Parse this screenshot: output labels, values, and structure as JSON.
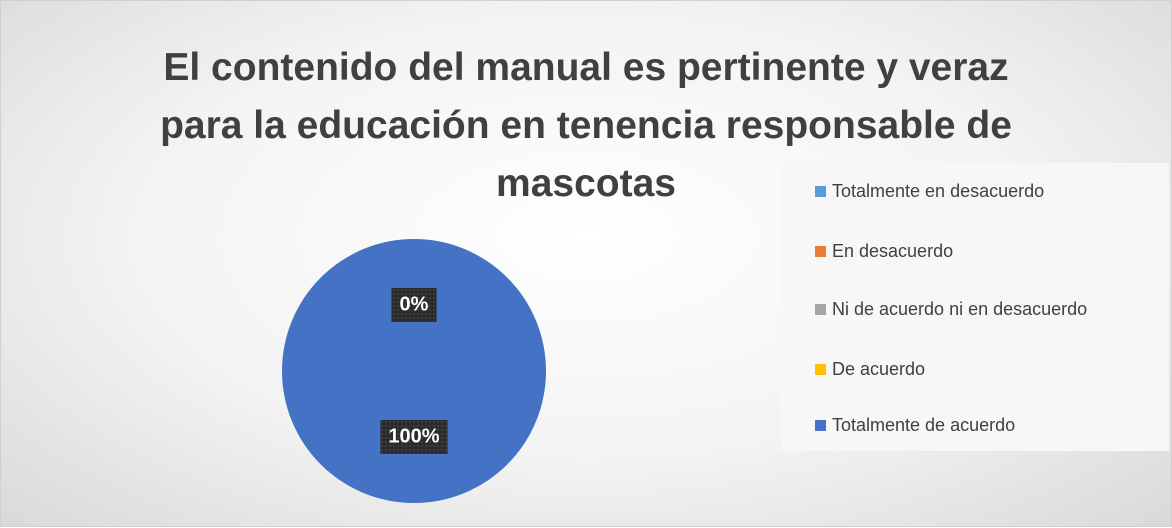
{
  "chart_data": {
    "type": "pie",
    "title": "El contenido del manual es pertinente y veraz para la educación en tenencia responsable de mascotas",
    "categories": [
      "Totalmente en desacuerdo",
      "En desacuerdo",
      "Ni de acuerdo ni en desacuerdo",
      "De acuerdo",
      "Totalmente de acuerdo"
    ],
    "values": [
      0,
      0,
      0,
      0,
      100
    ],
    "value_labels": [
      "0%",
      "0%",
      "0%",
      "0%",
      "100%"
    ],
    "colors": [
      "#5B9BD5",
      "#ED7D31",
      "#A5A5A5",
      "#FFC000",
      "#4472C4"
    ],
    "legend": "right"
  }
}
